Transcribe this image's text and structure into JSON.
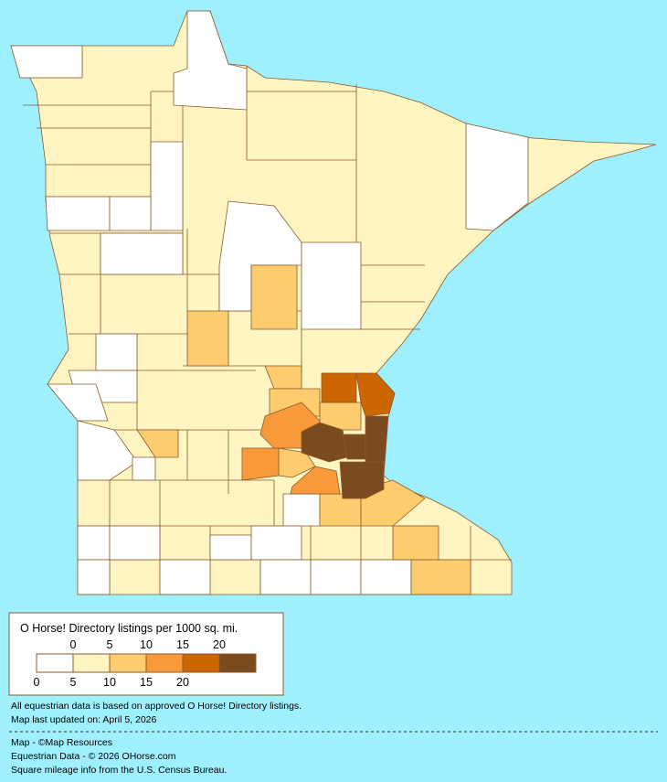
{
  "legend": {
    "title": "O Horse! Directory listings per 1000 sq. mi.",
    "top_labels": [
      0,
      5,
      10,
      15,
      20
    ],
    "bottom_labels": [
      0,
      5,
      10,
      15,
      20
    ],
    "colors": [
      "#ffffff",
      "#fef5c3",
      "#fdcc6e",
      "#f99a3a",
      "#cc6600",
      "#7b4a1f"
    ]
  },
  "notes": [
    "All equestrian data is based on approved O Horse! Directory listings.",
    "Map last updated on: April 5, 2026"
  ],
  "credits": [
    "Map - ©Map Resources",
    "Equestrian Data - © 2026 OHorse.com",
    "Square mileage info from the U.S. Census Bureau."
  ]
}
